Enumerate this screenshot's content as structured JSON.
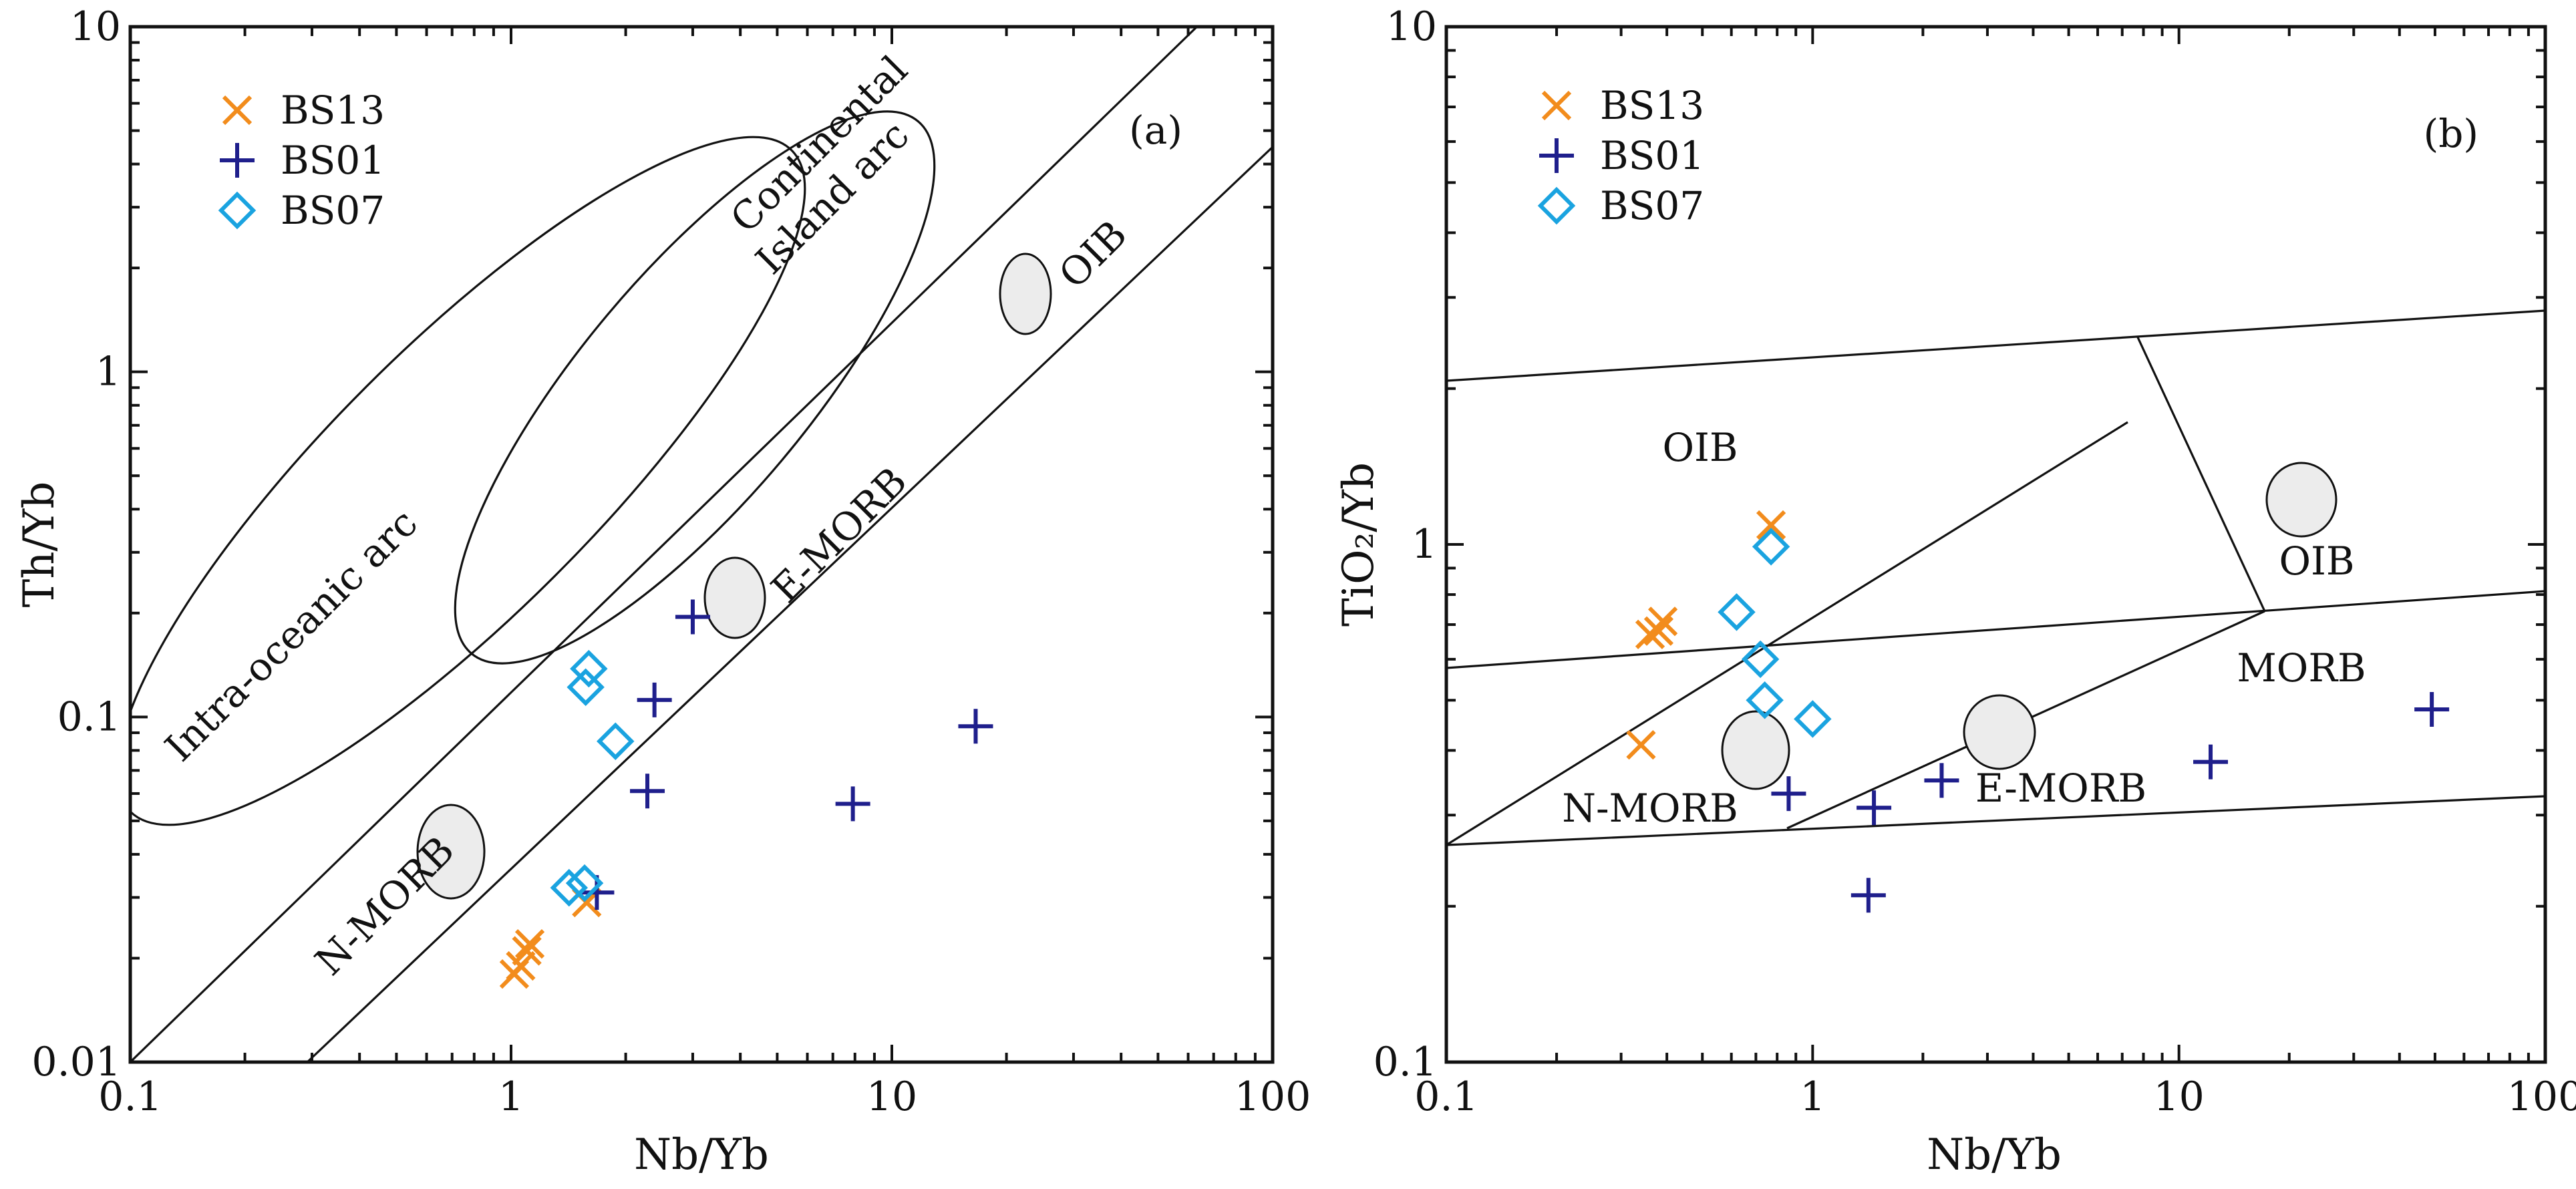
{
  "chart_data": [
    {
      "type": "scatter",
      "panel_label": "(a)",
      "xlabel": "Nb/Yb",
      "ylabel": "Th/Yb",
      "xscale": "log",
      "yscale": "log",
      "xlim": [
        0.1,
        100
      ],
      "ylim": [
        0.01,
        10
      ],
      "xticklabels": [
        "0.1",
        "1",
        "10",
        "100"
      ],
      "yticklabels": [
        "0.01",
        "0.1",
        "1",
        "10"
      ],
      "legend_placement": "top-left",
      "series": [
        {
          "name": "BS13",
          "marker": "x",
          "color": "#f28c1c",
          "x": [
            1.02,
            1.06,
            1.1,
            1.12,
            1.58
          ],
          "y": [
            0.018,
            0.019,
            0.021,
            0.022,
            0.029
          ]
        },
        {
          "name": "BS01",
          "marker": "+",
          "color": "#1f1f8c",
          "x": [
            1.68,
            2.28,
            2.38,
            3.0,
            7.9,
            16.6
          ],
          "y": [
            0.031,
            0.061,
            0.112,
            0.195,
            0.056,
            0.094
          ]
        },
        {
          "name": "BS07",
          "marker": "diamond",
          "color": "#1aa3e0",
          "x": [
            1.42,
            1.56,
            1.57,
            1.6,
            1.88
          ],
          "y": [
            0.032,
            0.033,
            0.122,
            0.138,
            0.085
          ]
        }
      ],
      "field_labels": [
        "Continental",
        "Island arc",
        "Intra-oceanic arc",
        "OIB",
        "E-MORB",
        "N-MORB"
      ]
    },
    {
      "type": "scatter",
      "panel_label": "(b)",
      "xlabel": "Nb/Yb",
      "ylabel": "TiO₂/Yb",
      "xscale": "log",
      "yscale": "log",
      "xlim": [
        0.1,
        100
      ],
      "ylim": [
        0.1,
        10
      ],
      "xticklabels": [
        "0.1",
        "1",
        "10",
        "100"
      ],
      "yticklabels": [
        "0.1",
        "1",
        "10"
      ],
      "legend_placement": "top-left",
      "series": [
        {
          "name": "BS13",
          "marker": "x",
          "color": "#f28c1c",
          "x": [
            0.34,
            0.36,
            0.38,
            0.39,
            0.77
          ],
          "y": [
            0.41,
            0.67,
            0.68,
            0.71,
            1.09
          ]
        },
        {
          "name": "BS01",
          "marker": "+",
          "color": "#1f1f8c",
          "x": [
            0.86,
            1.42,
            1.47,
            2.25,
            12.2,
            49.0
          ],
          "y": [
            0.33,
            0.21,
            0.31,
            0.35,
            0.38,
            0.48
          ]
        },
        {
          "name": "BS07",
          "marker": "diamond",
          "color": "#1aa3e0",
          "x": [
            0.62,
            0.72,
            0.74,
            0.77,
            1.0
          ],
          "y": [
            0.74,
            0.6,
            0.5,
            0.99,
            0.46
          ]
        }
      ],
      "field_labels": [
        "OIB",
        "OIB",
        "MORB",
        "N-MORB",
        "E-MORB"
      ]
    }
  ]
}
